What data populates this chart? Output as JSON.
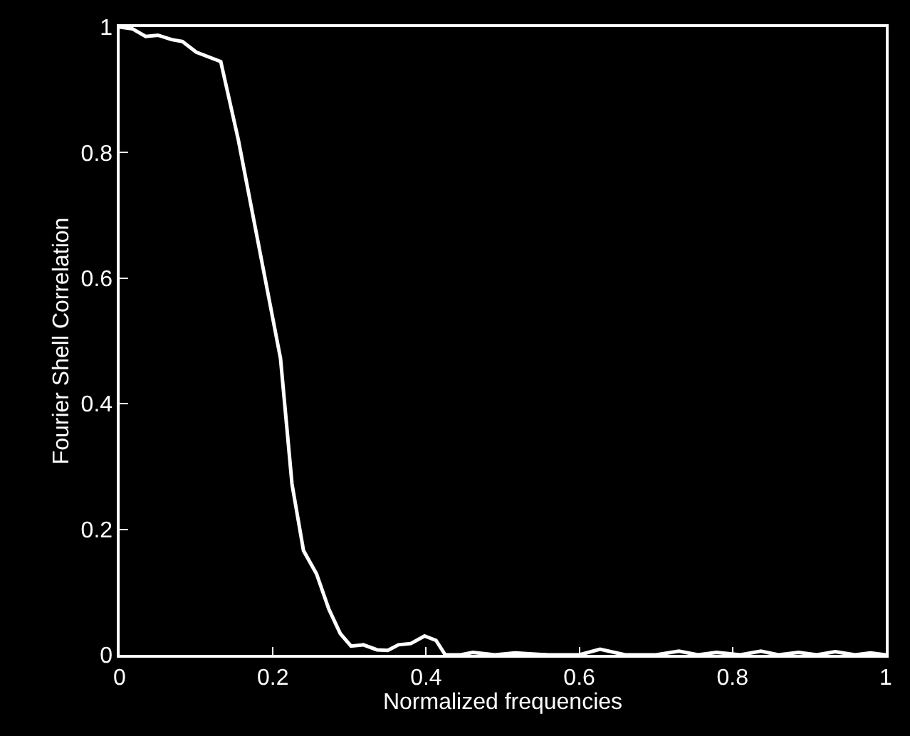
{
  "chart_data": {
    "type": "line",
    "xlabel": "Normalized frequencies",
    "ylabel": "Fourier Shell Correlation",
    "x": [
      0,
      0.017,
      0.034,
      0.05,
      0.068,
      0.082,
      0.1,
      0.132,
      0.155,
      0.195,
      0.21,
      0.225,
      0.24,
      0.257,
      0.273,
      0.288,
      0.302,
      0.318,
      0.336,
      0.35,
      0.364,
      0.38,
      0.398,
      0.413,
      0.425,
      0.445,
      0.461,
      0.49,
      0.516,
      0.56,
      0.6,
      0.627,
      0.66,
      0.7,
      0.73,
      0.755,
      0.779,
      0.81,
      0.837,
      0.86,
      0.886,
      0.91,
      0.934,
      0.96,
      0.98,
      1
    ],
    "series": [
      {
        "color": "#ffffff",
        "values": [
          1,
          0.997,
          0.985,
          0.987,
          0.98,
          0.977,
          0.96,
          0.945,
          0.82,
          0.567,
          0.472,
          0.272,
          0.166,
          0.129,
          0.073,
          0.034,
          0.014,
          0.016,
          0.008,
          0.007,
          0.016,
          0.018,
          0.03,
          0.023,
          0,
          0,
          0.004,
          0,
          0.003,
          0,
          0,
          0.009,
          0,
          0,
          0.006,
          0,
          0.004,
          0,
          0.006,
          0,
          0.004,
          0,
          0.005,
          0,
          0.003,
          0
        ]
      }
    ],
    "xlim": [
      0,
      1
    ],
    "xticks": [
      0,
      0.2,
      0.4,
      0.6,
      0.8,
      1
    ],
    "ylim": [
      0,
      1
    ],
    "yticks": [
      0,
      0.2,
      0.4,
      0.6,
      0.8,
      1
    ],
    "grid": false,
    "marker": "none",
    "line_style": "solid"
  }
}
